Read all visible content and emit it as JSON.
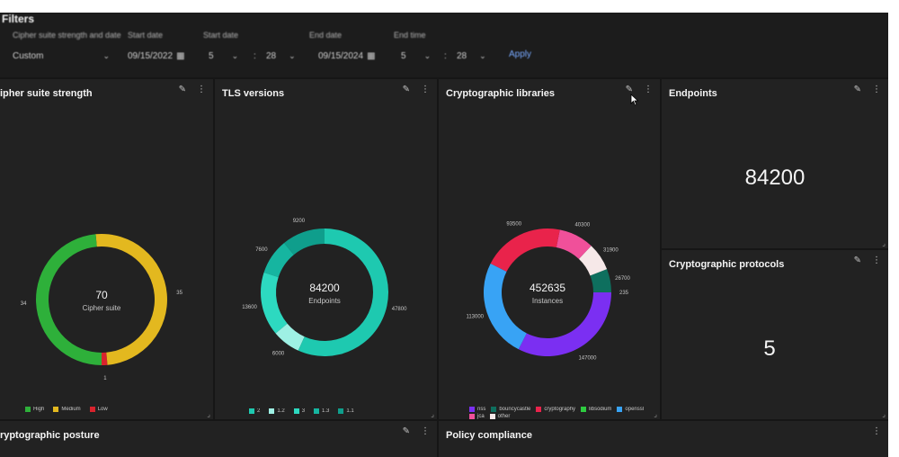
{
  "filters": {
    "title": "Filters",
    "label_main": "Cipher suite strength and date",
    "value_main": "Custom",
    "label_start": "Start date",
    "start_date": "09/15/2022",
    "start_hour": "5",
    "start_minute": "28",
    "label_end": "End date",
    "end_date": "09/15/2024",
    "end_hour": "5",
    "end_minute": "28",
    "label_end_time": "End time",
    "apply_label": "Apply"
  },
  "tiles": {
    "cipher": {
      "title": "Cipher suite strength",
      "center_value": "70",
      "center_label": "Cipher suite",
      "legend": [
        {
          "label": "High",
          "color": "#2eb03a"
        },
        {
          "label": "Medium",
          "color": "#e3b81f"
        },
        {
          "label": "Low",
          "color": "#d9232d"
        }
      ]
    },
    "tls": {
      "title": "TLS versions",
      "center_value": "84200",
      "center_label": "Endpoints",
      "legend": [
        {
          "label": "2",
          "color": "#1ec9b0"
        },
        {
          "label": "1.2",
          "color": "#9ef0e4"
        },
        {
          "label": "3",
          "color": "#2dd9c0"
        },
        {
          "label": "1.3",
          "color": "#16b5a0"
        },
        {
          "label": "1.1",
          "color": "#0f9e8c"
        }
      ]
    },
    "crypto": {
      "title": "Cryptographic libraries",
      "center_value": "452635",
      "center_label": "Instances",
      "legend": [
        {
          "label": "nss",
          "color": "#7b2ff2"
        },
        {
          "label": "bouncycastle",
          "color": "#0e6f5e"
        },
        {
          "label": "cryptography",
          "color": "#e9234b"
        },
        {
          "label": "libsodium",
          "color": "#2ecc40"
        },
        {
          "label": "openssl",
          "color": "#38a3f5"
        },
        {
          "label": "jca",
          "color": "#f0509a"
        },
        {
          "label": "other",
          "color": "#f6e8e8"
        }
      ]
    },
    "endpoints": {
      "title": "Endpoints",
      "value": "84200"
    },
    "protocols": {
      "title": "Cryptographic protocols",
      "value": "5"
    },
    "posture": {
      "title": "Cryptographic posture"
    },
    "policy": {
      "title": "Policy compliance"
    }
  },
  "chart_data": [
    {
      "type": "pie",
      "title": "Cipher suite strength",
      "categories": [
        "High",
        "Medium",
        "Low"
      ],
      "values": [
        34,
        35,
        1
      ],
      "total_label": "70"
    },
    {
      "type": "pie",
      "title": "TLS versions",
      "categories": [
        "2",
        "1.2",
        "3",
        "1.3",
        "1.1"
      ],
      "values": [
        47800,
        6000,
        13600,
        7600,
        9200
      ],
      "total_label": "84200"
    },
    {
      "type": "pie",
      "title": "Cryptographic libraries",
      "categories": [
        "nss",
        "openssl",
        "cryptography",
        "jca",
        "other",
        "bouncycastle",
        "libsodium"
      ],
      "values": [
        147000,
        113000,
        93500,
        40300,
        31900,
        26700,
        235
      ],
      "total_label": "452635"
    }
  ]
}
